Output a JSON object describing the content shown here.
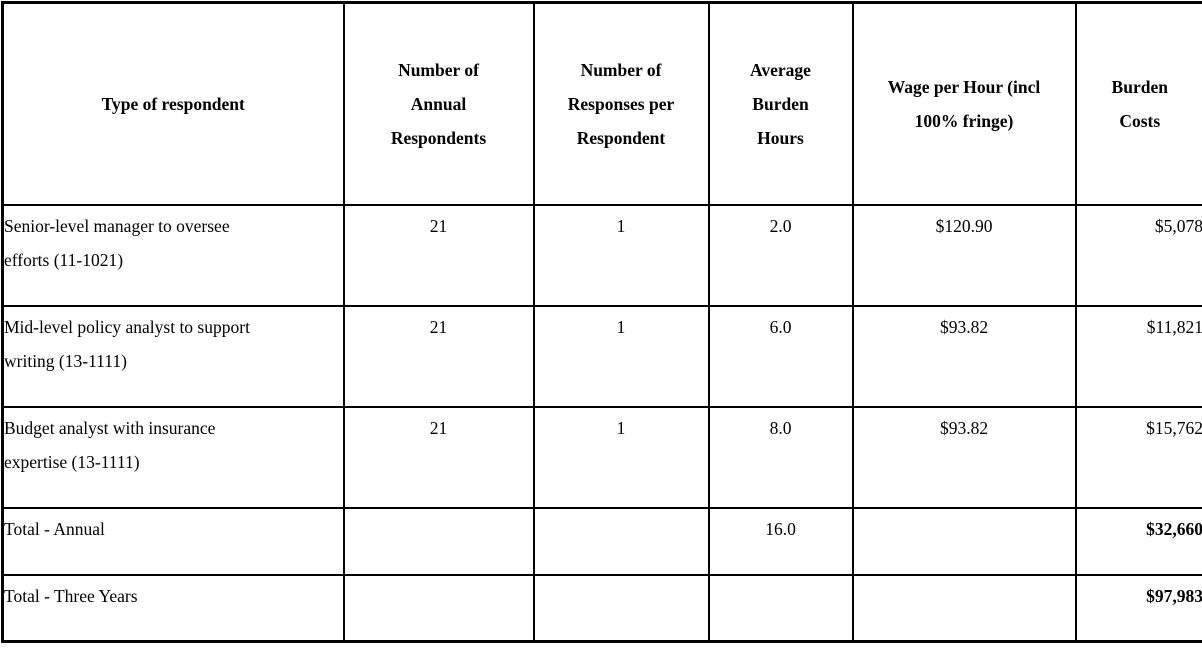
{
  "table": {
    "headers": [
      "Type of respondent",
      "Number of\nAnnual\nRespondents",
      "Number of\nResponses per\nRespondent",
      "Average\nBurden\nHours",
      "Wage per Hour (incl\n100% fringe)",
      "Burden\nCosts"
    ],
    "rows": [
      {
        "cells": [
          "Senior-level manager to oversee\nefforts (11-1021)",
          "21",
          "1",
          "2.0",
          "$120.90",
          "$5,078"
        ]
      },
      {
        "cells": [
          "Mid-level policy analyst to support\nwriting (13-1111)",
          "21",
          "1",
          "6.0",
          "$93.82",
          "$11,821"
        ]
      },
      {
        "cells": [
          "Budget analyst with insurance\nexpertise (13-1111)",
          "21",
          "1",
          "8.0",
          "$93.82",
          "$15,762"
        ]
      },
      {
        "cells": [
          "Total - Annual",
          "",
          "",
          "16.0",
          "",
          "$32,660"
        ]
      },
      {
        "cells": [
          "Total - Three Years",
          "",
          "",
          "",
          "",
          "$97,983"
        ]
      }
    ],
    "colors": {
      "border": "#000000",
      "text": "#000000",
      "background": "#ffffff"
    }
  }
}
